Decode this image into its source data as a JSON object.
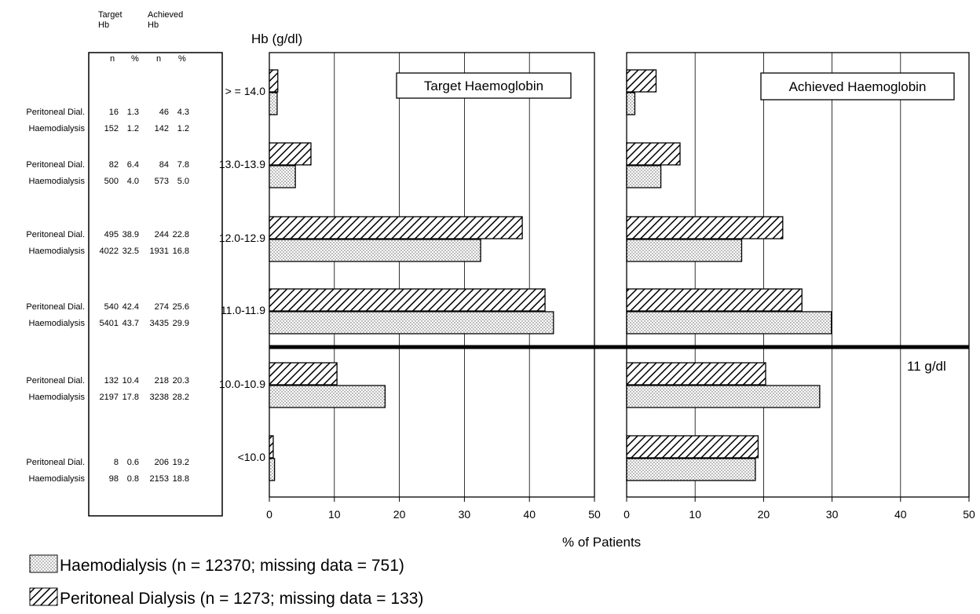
{
  "table": {
    "header_target": [
      "Target",
      "Hb"
    ],
    "header_achieved": [
      "Achieved",
      "Hb"
    ],
    "col_labels": [
      "n",
      "%",
      "n",
      "%"
    ],
    "groups": [
      {
        "rows": [
          {
            "label": "Peritoneal Dial.",
            "cells": [
              "16",
              "1.3",
              "46",
              "4.3"
            ]
          },
          {
            "label": "Haemodialysis",
            "cells": [
              "152",
              "1.2",
              "142",
              "1.2"
            ]
          }
        ]
      },
      {
        "rows": [
          {
            "label": "Peritoneal Dial.",
            "cells": [
              "82",
              "6.4",
              "84",
              "7.8"
            ]
          },
          {
            "label": "Haemodialysis",
            "cells": [
              "500",
              "4.0",
              "573",
              "5.0"
            ]
          }
        ]
      },
      {
        "rows": [
          {
            "label": "Peritoneal Dial.",
            "cells": [
              "495",
              "38.9",
              "244",
              "22.8"
            ]
          },
          {
            "label": "Haemodialysis",
            "cells": [
              "4022",
              "32.5",
              "1931",
              "16.8"
            ]
          }
        ]
      },
      {
        "rows": [
          {
            "label": "Peritoneal Dial.",
            "cells": [
              "540",
              "42.4",
              "274",
              "25.6"
            ]
          },
          {
            "label": "Haemodialysis",
            "cells": [
              "5401",
              "43.7",
              "3435",
              "29.9"
            ]
          }
        ]
      },
      {
        "rows": [
          {
            "label": "Peritoneal Dial.",
            "cells": [
              "132",
              "10.4",
              "218",
              "20.3"
            ]
          },
          {
            "label": "Haemodialysis",
            "cells": [
              "2197",
              "17.8",
              "3238",
              "28.2"
            ]
          }
        ]
      },
      {
        "rows": [
          {
            "label": "Peritoneal Dial.",
            "cells": [
              "8",
              "0.6",
              "206",
              "19.2"
            ]
          },
          {
            "label": "Haemodialysis",
            "cells": [
              "98",
              "0.8",
              "2153",
              "18.8"
            ]
          }
        ]
      }
    ]
  },
  "chart_data": {
    "type": "bar",
    "orientation": "horizontal",
    "ylabel": "Hb (g/dl)",
    "xlabel": "% of Patients",
    "categories": [
      ">= 14.0",
      "13.0-13.9",
      "12.0-12.9",
      "11.0-11.9",
      "10.0-10.9",
      "<10.0"
    ],
    "category_labels": [
      "> = 14.0",
      "13.0-13.9",
      "12.0-12.9",
      "11.0-11.9",
      "10.0-10.9",
      "<10.0"
    ],
    "xlim": [
      0,
      50
    ],
    "xticks": [
      "0",
      "10",
      "20",
      "30",
      "40",
      "50"
    ],
    "panels": [
      {
        "title": "Target Haemoglobin",
        "series": [
          {
            "name": "Peritoneal Dialysis",
            "pattern": "hatch",
            "values": [
              1.3,
              6.4,
              38.9,
              42.4,
              10.4,
              0.6
            ]
          },
          {
            "name": "Haemodialysis",
            "pattern": "dots",
            "values": [
              1.2,
              4.0,
              32.5,
              43.7,
              17.8,
              0.8
            ]
          }
        ]
      },
      {
        "title": "Achieved Haemoglobin",
        "series": [
          {
            "name": "Peritoneal Dialysis",
            "pattern": "hatch",
            "values": [
              4.3,
              7.8,
              22.8,
              25.6,
              20.3,
              19.2
            ]
          },
          {
            "name": "Haemodialysis",
            "pattern": "dots",
            "values": [
              1.2,
              5.0,
              16.8,
              29.9,
              28.2,
              18.8
            ]
          }
        ]
      }
    ],
    "threshold": {
      "label": "11 g/dl",
      "value": 11
    },
    "legend": [
      {
        "pattern": "dots",
        "text": "Haemodialysis (n = 12370; missing data = 751)"
      },
      {
        "pattern": "hatch",
        "text": "Peritoneal Dialysis (n = 1273; missing data = 133)"
      }
    ],
    "legend_position": "bottom-left",
    "grid": true
  }
}
